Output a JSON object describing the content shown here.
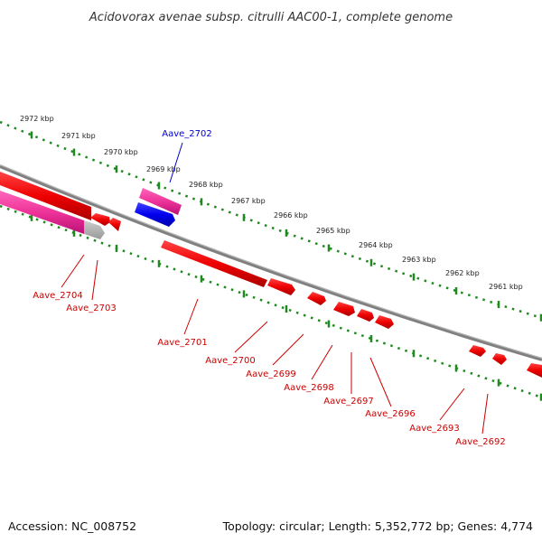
{
  "title": "Acidovorax avenae subsp. citrulli AAC00-1, complete genome",
  "footer": {
    "accession": "Accession: NC_008752",
    "summary": "Topology: circular; Length: 5,352,772 bp; Genes: 4,774"
  },
  "colors": {
    "backbone": "#808080",
    "tick_dots": "#1f8a1f",
    "forward_gene": "#0000ee",
    "reverse_gene": "#ee0000",
    "pseudo_gene": "#ee3399",
    "rna_gene": "#aaaaaa"
  },
  "scale_labels": [
    "2972 kbp",
    "2971 kbp",
    "2970 kbp",
    "2969 kbp",
    "2968 kbp",
    "2967 kbp",
    "2966 kbp",
    "2965 kbp",
    "2964 kbp",
    "2963 kbp",
    "2962 kbp",
    "2961 kbp"
  ],
  "gene_labels": {
    "forward": [
      "Aave_2702"
    ],
    "reverse": [
      "Aave_2704",
      "Aave_2703",
      "Aave_2701",
      "Aave_2700",
      "Aave_2699",
      "Aave_2698",
      "Aave_2697",
      "Aave_2696",
      "Aave_2693",
      "Aave_2692"
    ]
  }
}
